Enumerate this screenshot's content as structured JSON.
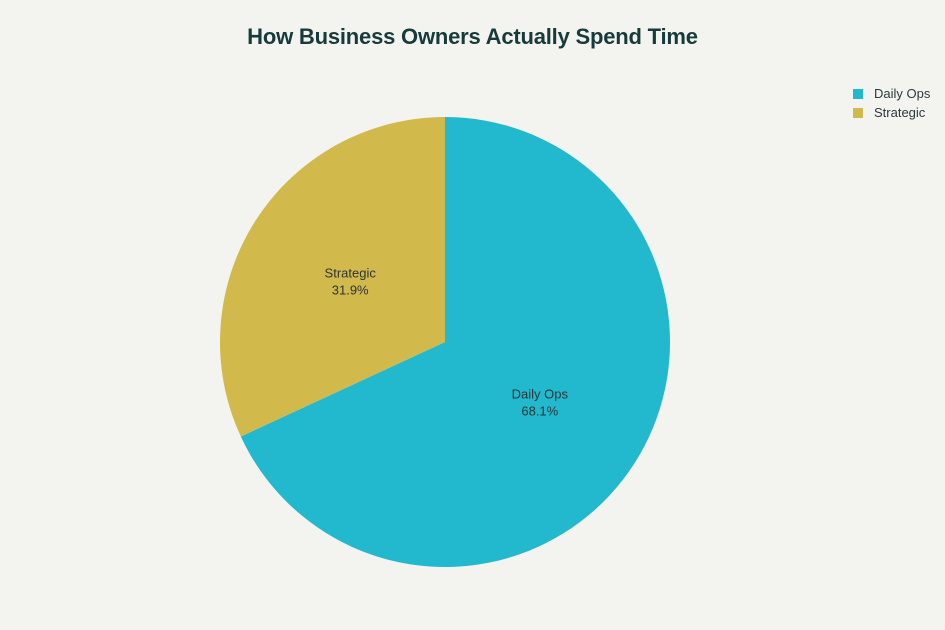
{
  "chart_data": {
    "type": "pie",
    "title": "How Business Owners Actually Spend Time",
    "slices": [
      {
        "label": "Daily Ops",
        "value": 68.1,
        "display": "68.1%",
        "color": "#22b8ce"
      },
      {
        "label": "Strategic",
        "value": 31.9,
        "display": "31.9%",
        "color": "#d2b94c"
      }
    ],
    "legend": {
      "placement": "top-right",
      "items": [
        {
          "label": "Daily Ops",
          "color": "#22b8ce"
        },
        {
          "label": "Strategic",
          "color": "#d2b94c"
        }
      ]
    }
  }
}
